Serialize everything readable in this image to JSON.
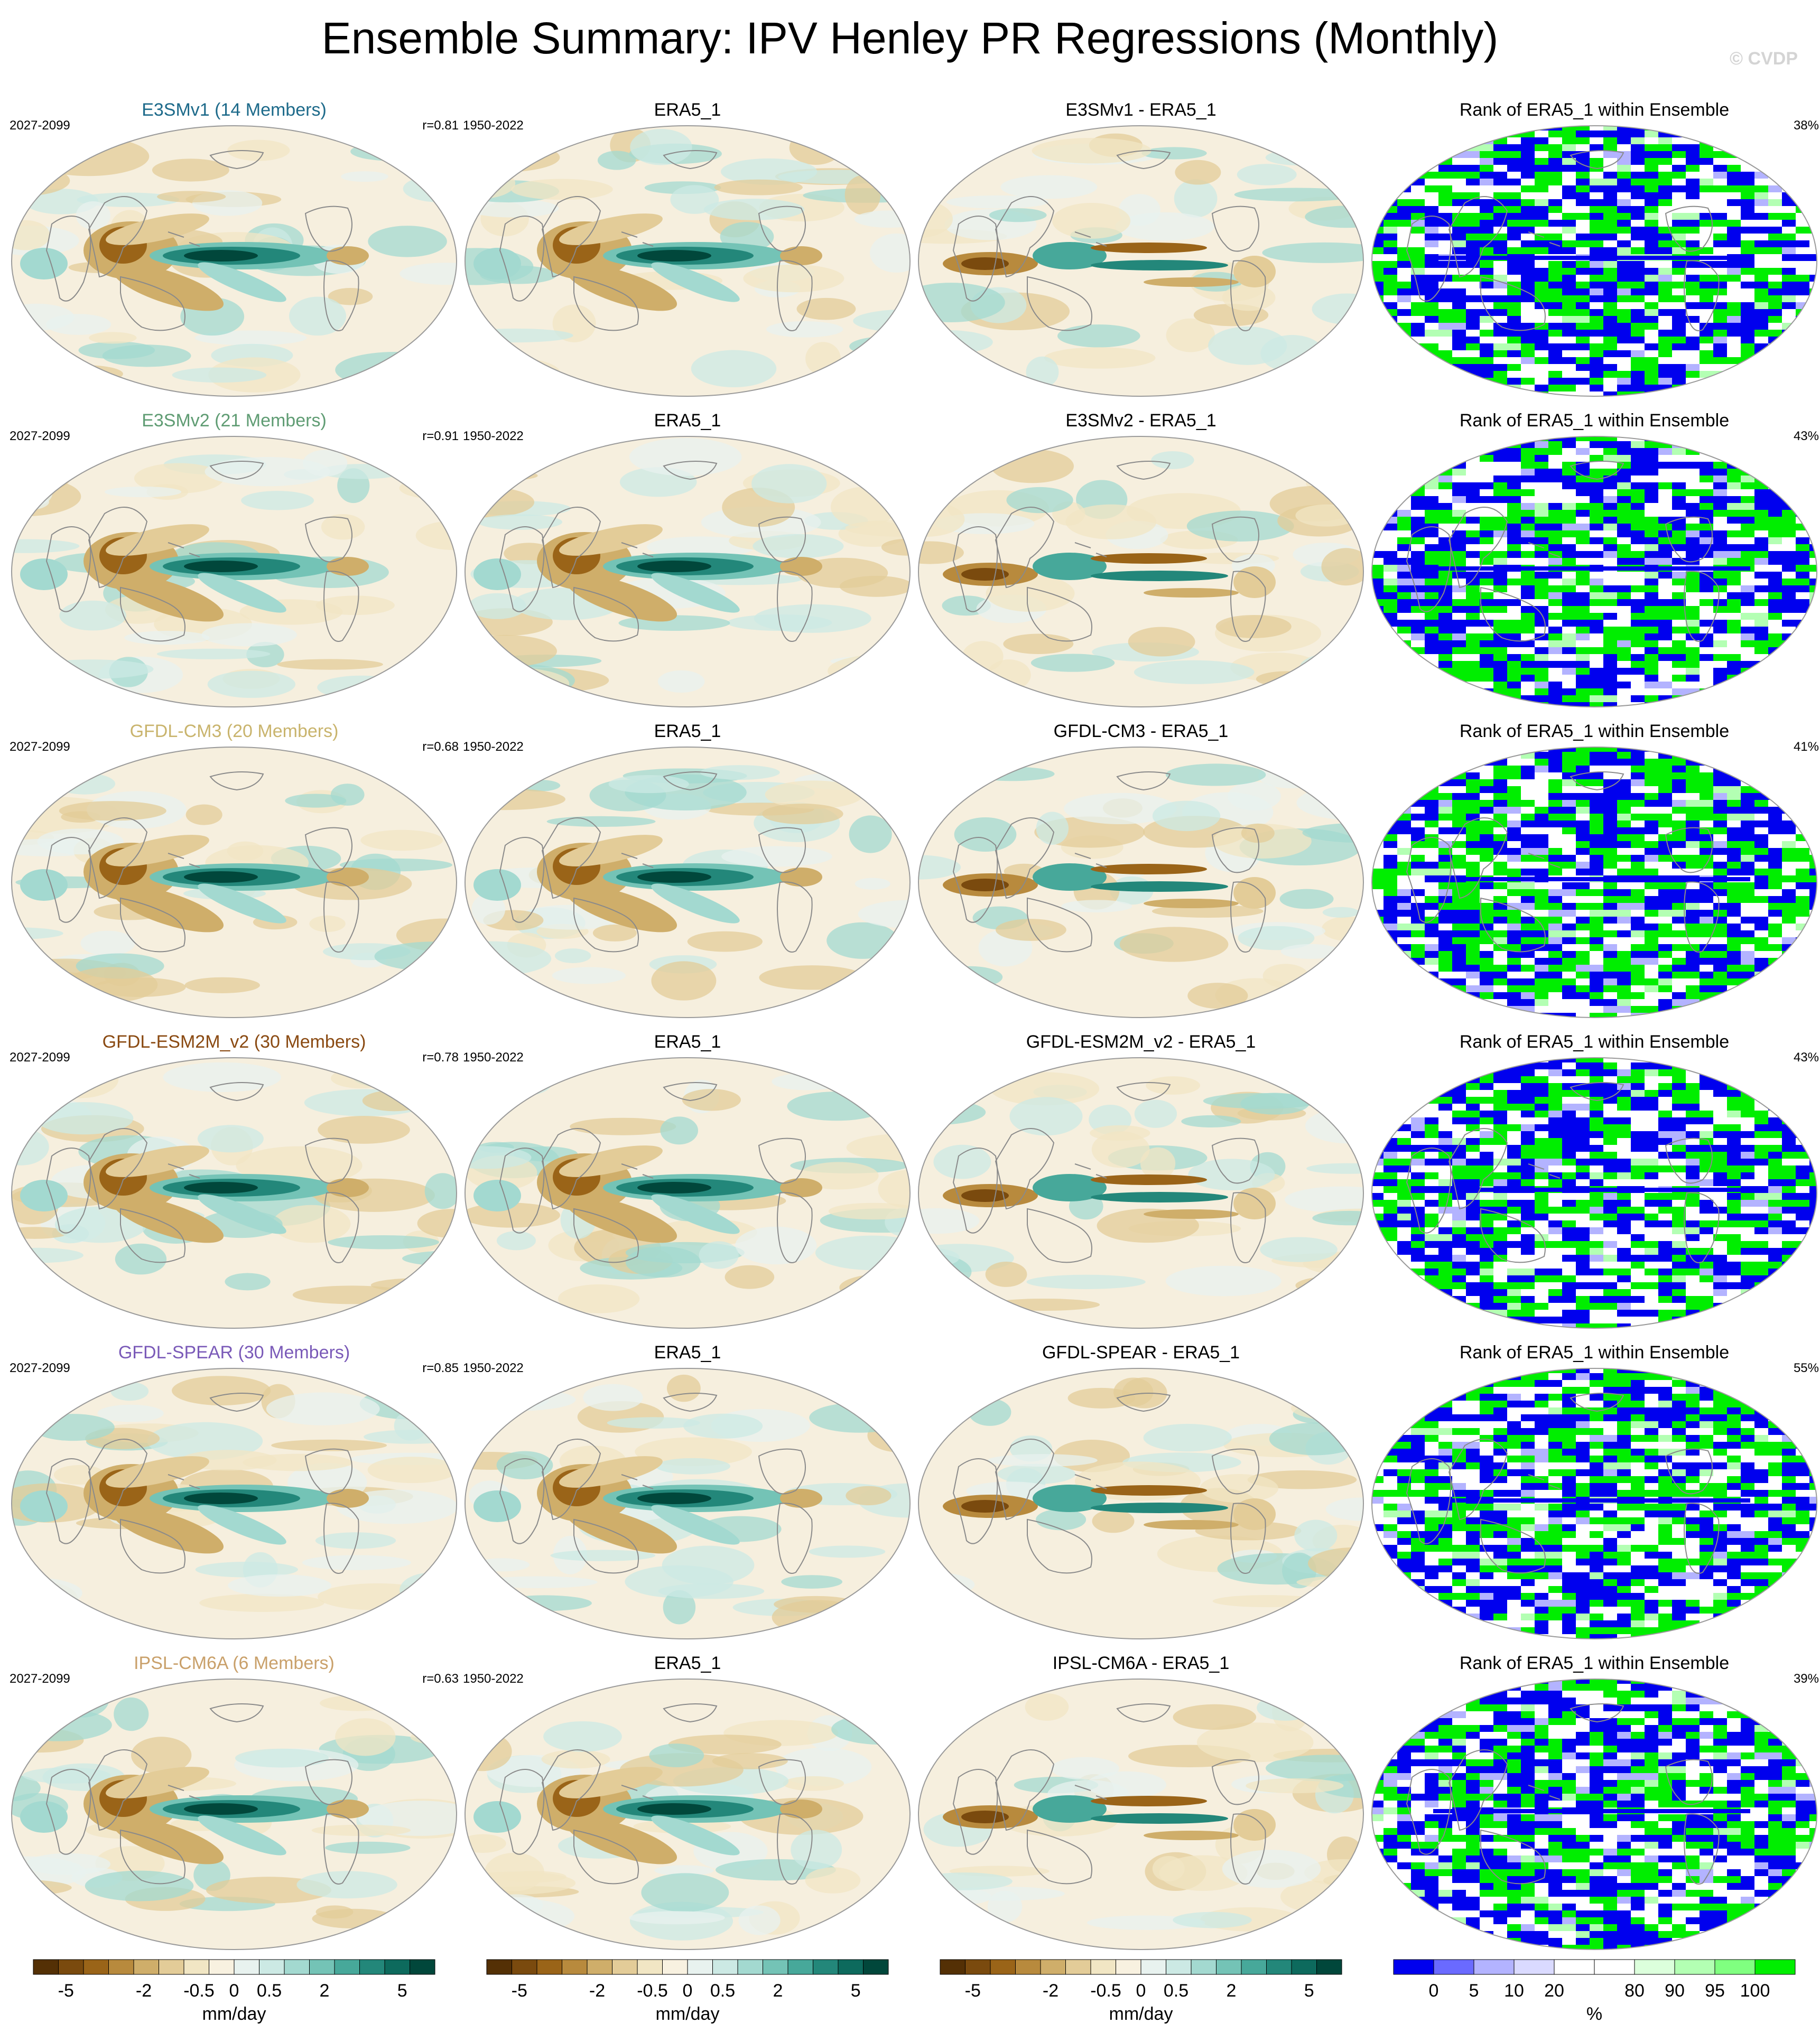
{
  "header": {
    "title": "Ensemble Summary: IPV Henley PR Regressions (Monthly)",
    "watermark": "© CVDP"
  },
  "colors": {
    "brown_to_teal": [
      "#543005",
      "#7a4a0e",
      "#9a6418",
      "#b88a3d",
      "#cfae6a",
      "#e3cc98",
      "#f1e6c4",
      "#f8f1e0",
      "#e8f2ef",
      "#cce9e4",
      "#a3d9d0",
      "#74c3b6",
      "#47a89a",
      "#23877a",
      "#0d6a5d",
      "#01473b"
    ],
    "rank": [
      "#0000ee",
      "#6a6aff",
      "#b3b3ff",
      "#dadaff",
      "#ffffff",
      "#ffffff",
      "#dcffdc",
      "#b3ffb3",
      "#80ff80",
      "#00ee00"
    ],
    "blue": "#0000ee",
    "green": "#00ee00"
  },
  "rows": [
    {
      "model": "E3SMv1 (14 Members)",
      "model_color": "#1d6a8a",
      "model_years": "2027-2099",
      "r": "r=0.81",
      "obs": "ERA5_1",
      "obs_years": "1950-2022",
      "diff": "E3SMv1 - ERA5_1",
      "rank_title": "Rank of ERA5_1 within Ensemble",
      "rank_pct": "38%"
    },
    {
      "model": "E3SMv2 (21 Members)",
      "model_color": "#5f9c73",
      "model_years": "2027-2099",
      "r": "r=0.91",
      "obs": "ERA5_1",
      "obs_years": "1950-2022",
      "diff": "E3SMv2 - ERA5_1",
      "rank_title": "Rank of ERA5_1 within Ensemble",
      "rank_pct": "43%"
    },
    {
      "model": "GFDL-CM3 (20 Members)",
      "model_color": "#c9b46d",
      "model_years": "2027-2099",
      "r": "r=0.68",
      "obs": "ERA5_1",
      "obs_years": "1950-2022",
      "diff": "GFDL-CM3 - ERA5_1",
      "rank_title": "Rank of ERA5_1 within Ensemble",
      "rank_pct": "41%"
    },
    {
      "model": "GFDL-ESM2M_v2 (30 Members)",
      "model_color": "#8a4a12",
      "model_years": "2027-2099",
      "r": "r=0.78",
      "obs": "ERA5_1",
      "obs_years": "1950-2022",
      "diff": "GFDL-ESM2M_v2 - ERA5_1",
      "rank_title": "Rank of ERA5_1 within Ensemble",
      "rank_pct": "43%"
    },
    {
      "model": "GFDL-SPEAR (30 Members)",
      "model_color": "#7a5ab8",
      "model_years": "2027-2099",
      "r": "r=0.85",
      "obs": "ERA5_1",
      "obs_years": "1950-2022",
      "diff": "GFDL-SPEAR - ERA5_1",
      "rank_title": "Rank of ERA5_1 within Ensemble",
      "rank_pct": "55%"
    },
    {
      "model": "IPSL-CM6A (6 Members)",
      "model_color": "#c9a06a",
      "model_years": "2027-2099",
      "r": "r=0.63",
      "obs": "ERA5_1",
      "obs_years": "1950-2022",
      "diff": "IPSL-CM6A - ERA5_1",
      "rank_title": "Rank of ERA5_1 within Ensemble",
      "rank_pct": "39%"
    }
  ],
  "colorbars": {
    "pr": {
      "label": "mm/day",
      "ticks": [
        "-5",
        "-2",
        "-0.5",
        "0",
        "0.5",
        "2",
        "5"
      ]
    },
    "rank": {
      "label": "%",
      "ticks": [
        "0",
        "5",
        "10",
        "20",
        "80",
        "90",
        "95",
        "100"
      ]
    }
  }
}
